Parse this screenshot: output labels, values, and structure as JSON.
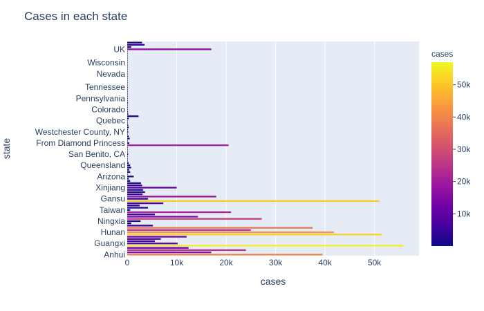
{
  "chart_data": {
    "type": "bar",
    "orientation": "horizontal",
    "title": "Cases in each state",
    "xlabel": "cases",
    "ylabel": "state",
    "xlim": [
      0,
      59000
    ],
    "x_ticks": [
      0,
      10000,
      20000,
      30000,
      40000,
      50000
    ],
    "x_tick_labels": [
      "0",
      "10k",
      "20k",
      "30k",
      "40k",
      "50k"
    ],
    "grid": true,
    "colorbar": {
      "title": "cases",
      "range": [
        0,
        57000
      ],
      "ticks": [
        10000,
        20000,
        30000,
        40000,
        50000
      ],
      "tick_labels": [
        "10k",
        "20k",
        "30k",
        "40k",
        "50k"
      ]
    },
    "colorscale": [
      "#0d0887",
      "#46039f",
      "#7201a8",
      "#9c179e",
      "#bd3786",
      "#d8576b",
      "#ed7953",
      "#fb9f3a",
      "#fdca26",
      "#f0f921"
    ],
    "y_tick_labels": [
      "UK",
      "Wisconsin",
      "Nevada",
      "Tennessee",
      "Pennsylvania",
      "Colorado",
      "Quebec",
      "Westchester County, NY",
      "From Diamond Princess",
      "San Benito, CA",
      "Queensland",
      "Arizona",
      "Xinjiang",
      "Gansu",
      "Taiwan",
      "Ningxia",
      "Hunan",
      "Guangxi",
      "Anhui"
    ],
    "bars": [
      {
        "state": "",
        "cases": 3000
      },
      {
        "state": "",
        "cases": 3500
      },
      {
        "state": "",
        "cases": 800
      },
      {
        "state": "UK",
        "cases": 17000
      },
      {
        "state": "",
        "cases": 0
      },
      {
        "state": "",
        "cases": 0
      },
      {
        "state": "",
        "cases": 0
      },
      {
        "state": "",
        "cases": 0
      },
      {
        "state": "",
        "cases": 0
      },
      {
        "state": "Wisconsin",
        "cases": 0
      },
      {
        "state": "",
        "cases": 0
      },
      {
        "state": "",
        "cases": 0
      },
      {
        "state": "",
        "cases": 0
      },
      {
        "state": "",
        "cases": 0
      },
      {
        "state": "Nevada",
        "cases": 0
      },
      {
        "state": "",
        "cases": 0
      },
      {
        "state": "",
        "cases": 0
      },
      {
        "state": "",
        "cases": 0
      },
      {
        "state": "",
        "cases": 0
      },
      {
        "state": "",
        "cases": 0
      },
      {
        "state": "Tennessee",
        "cases": 100
      },
      {
        "state": "",
        "cases": 100
      },
      {
        "state": "",
        "cases": 100
      },
      {
        "state": "",
        "cases": 100
      },
      {
        "state": "",
        "cases": 100
      },
      {
        "state": "Pennsylvania",
        "cases": 100
      },
      {
        "state": "",
        "cases": 100
      },
      {
        "state": "",
        "cases": 150
      },
      {
        "state": "",
        "cases": 100
      },
      {
        "state": "",
        "cases": 100
      },
      {
        "state": "Colorado",
        "cases": 100
      },
      {
        "state": "",
        "cases": 150
      },
      {
        "state": "",
        "cases": 200
      },
      {
        "state": "",
        "cases": 2300
      },
      {
        "state": "",
        "cases": 300
      },
      {
        "state": "Quebec",
        "cases": 100
      },
      {
        "state": "",
        "cases": 100
      },
      {
        "state": "",
        "cases": 200
      },
      {
        "state": "",
        "cases": 300
      },
      {
        "state": "",
        "cases": 150
      },
      {
        "state": "Westchester County, NY",
        "cases": 200
      },
      {
        "state": "",
        "cases": 100
      },
      {
        "state": "",
        "cases": 300
      },
      {
        "state": "",
        "cases": 500
      },
      {
        "state": "",
        "cases": 100
      },
      {
        "state": "From Diamond Princess",
        "cases": 400
      },
      {
        "state": "",
        "cases": 20500
      },
      {
        "state": "",
        "cases": 100
      },
      {
        "state": "",
        "cases": 100
      },
      {
        "state": "",
        "cases": 100
      },
      {
        "state": "San Benito, CA",
        "cases": 200
      },
      {
        "state": "",
        "cases": 100
      },
      {
        "state": "",
        "cases": 100
      },
      {
        "state": "",
        "cases": 100
      },
      {
        "state": "",
        "cases": 300
      },
      {
        "state": "Queensland",
        "cases": 600
      },
      {
        "state": "",
        "cases": 800
      },
      {
        "state": "",
        "cases": 400
      },
      {
        "state": "",
        "cases": 600
      },
      {
        "state": "",
        "cases": 100
      },
      {
        "state": "Arizona",
        "cases": 1300
      },
      {
        "state": "",
        "cases": 300
      },
      {
        "state": "",
        "cases": 600
      },
      {
        "state": "",
        "cases": 2800
      },
      {
        "state": "",
        "cases": 3000
      },
      {
        "state": "Xinjiang",
        "cases": 10000
      },
      {
        "state": "",
        "cases": 3200
      },
      {
        "state": "",
        "cases": 3600
      },
      {
        "state": "",
        "cases": 3100
      },
      {
        "state": "",
        "cases": 18000
      },
      {
        "state": "Gansu",
        "cases": 4200
      },
      {
        "state": "",
        "cases": 51000
      },
      {
        "state": "",
        "cases": 7300
      },
      {
        "state": "",
        "cases": 2500
      },
      {
        "state": "",
        "cases": 4200
      },
      {
        "state": "Taiwan",
        "cases": 600
      },
      {
        "state": "",
        "cases": 21000
      },
      {
        "state": "",
        "cases": 5600
      },
      {
        "state": "",
        "cases": 14300
      },
      {
        "state": "",
        "cases": 27200
      },
      {
        "state": "Ningxia",
        "cases": 2700
      },
      {
        "state": "",
        "cases": 800
      },
      {
        "state": "",
        "cases": 5200
      },
      {
        "state": "",
        "cases": 37500
      },
      {
        "state": "",
        "cases": 25000
      },
      {
        "state": "Hunan",
        "cases": 41800
      },
      {
        "state": "",
        "cases": 51500
      },
      {
        "state": "",
        "cases": 12000
      },
      {
        "state": "",
        "cases": 6800
      },
      {
        "state": "",
        "cases": 5600
      },
      {
        "state": "Guangxi",
        "cases": 10200
      },
      {
        "state": "",
        "cases": 55800
      },
      {
        "state": "",
        "cases": 12400
      },
      {
        "state": "",
        "cases": 24000
      },
      {
        "state": "",
        "cases": 17000
      },
      {
        "state": "Anhui",
        "cases": 39500
      }
    ]
  }
}
